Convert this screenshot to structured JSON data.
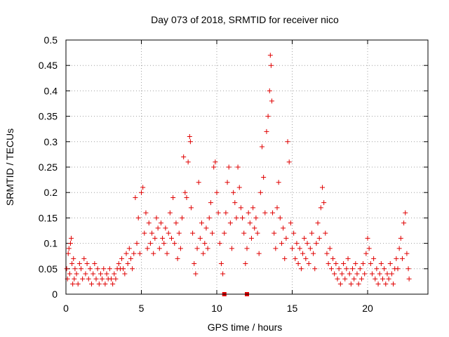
{
  "chart_data": {
    "type": "scatter",
    "title": "Day 073 of 2018, SRMTID for receiver nico",
    "xlabel": "GPS time / hours",
    "ylabel": "SRMTID / TECUs",
    "xlim": [
      0,
      24
    ],
    "ylim": [
      0,
      0.5
    ],
    "x_ticks": [
      0,
      5,
      10,
      15,
      20
    ],
    "y_ticks": [
      0,
      0.05,
      0.1,
      0.15,
      0.2,
      0.25,
      0.3,
      0.35,
      0.4,
      0.45,
      0.5
    ],
    "grid": true,
    "marker": "plus",
    "color": "#e00000",
    "series": [
      {
        "points": [
          [
            0.05,
            0.05
          ],
          [
            0.1,
            0.03
          ],
          [
            0.15,
            0.08
          ],
          [
            0.2,
            0.09
          ],
          [
            0.25,
            0.04
          ],
          [
            0.3,
            0.1
          ],
          [
            0.35,
            0.11
          ],
          [
            0.4,
            0.06
          ],
          [
            0.45,
            0.02
          ],
          [
            0.5,
            0.07
          ],
          [
            0.55,
            0.03
          ],
          [
            0.6,
            0.05
          ],
          [
            0.7,
            0.04
          ],
          [
            0.8,
            0.02
          ],
          [
            0.9,
            0.06
          ],
          [
            1.0,
            0.05
          ],
          [
            1.1,
            0.03
          ],
          [
            1.2,
            0.07
          ],
          [
            1.3,
            0.04
          ],
          [
            1.4,
            0.06
          ],
          [
            1.5,
            0.03
          ],
          [
            1.6,
            0.05
          ],
          [
            1.7,
            0.02
          ],
          [
            1.8,
            0.04
          ],
          [
            1.9,
            0.06
          ],
          [
            2.0,
            0.03
          ],
          [
            2.1,
            0.05
          ],
          [
            2.2,
            0.02
          ],
          [
            2.3,
            0.04
          ],
          [
            2.4,
            0.03
          ],
          [
            2.5,
            0.05
          ],
          [
            2.6,
            0.02
          ],
          [
            2.7,
            0.04
          ],
          [
            2.8,
            0.03
          ],
          [
            2.9,
            0.05
          ],
          [
            3.0,
            0.03
          ],
          [
            3.1,
            0.02
          ],
          [
            3.2,
            0.04
          ],
          [
            3.3,
            0.03
          ],
          [
            3.4,
            0.05
          ],
          [
            3.5,
            0.06
          ],
          [
            3.6,
            0.05
          ],
          [
            3.7,
            0.07
          ],
          [
            3.8,
            0.05
          ],
          [
            3.9,
            0.04
          ],
          [
            4.0,
            0.08
          ],
          [
            4.1,
            0.06
          ],
          [
            4.2,
            0.09
          ],
          [
            4.3,
            0.07
          ],
          [
            4.4,
            0.05
          ],
          [
            4.5,
            0.08
          ],
          [
            4.6,
            0.19
          ],
          [
            4.7,
            0.1
          ],
          [
            4.8,
            0.15
          ],
          [
            4.9,
            0.08
          ],
          [
            5.0,
            0.2
          ],
          [
            5.1,
            0.21
          ],
          [
            5.2,
            0.12
          ],
          [
            5.3,
            0.16
          ],
          [
            5.4,
            0.09
          ],
          [
            5.5,
            0.14
          ],
          [
            5.6,
            0.1
          ],
          [
            5.7,
            0.12
          ],
          [
            5.8,
            0.08
          ],
          [
            5.9,
            0.11
          ],
          [
            6.0,
            0.15
          ],
          [
            6.1,
            0.13
          ],
          [
            6.2,
            0.09
          ],
          [
            6.3,
            0.14
          ],
          [
            6.4,
            0.11
          ],
          [
            6.5,
            0.1
          ],
          [
            6.6,
            0.13
          ],
          [
            6.7,
            0.08
          ],
          [
            6.8,
            0.12
          ],
          [
            6.9,
            0.16
          ],
          [
            7.0,
            0.11
          ],
          [
            7.1,
            0.19
          ],
          [
            7.2,
            0.1
          ],
          [
            7.3,
            0.14
          ],
          [
            7.4,
            0.07
          ],
          [
            7.5,
            0.12
          ],
          [
            7.6,
            0.09
          ],
          [
            7.7,
            0.15
          ],
          [
            7.8,
            0.27
          ],
          [
            7.9,
            0.2
          ],
          [
            8.0,
            0.19
          ],
          [
            8.1,
            0.26
          ],
          [
            8.2,
            0.31
          ],
          [
            8.25,
            0.3
          ],
          [
            8.3,
            0.17
          ],
          [
            8.4,
            0.12
          ],
          [
            8.5,
            0.06
          ],
          [
            8.6,
            0.04
          ],
          [
            8.7,
            0.09
          ],
          [
            8.8,
            0.22
          ],
          [
            8.9,
            0.11
          ],
          [
            9.0,
            0.14
          ],
          [
            9.1,
            0.08
          ],
          [
            9.2,
            0.1
          ],
          [
            9.3,
            0.13
          ],
          [
            9.4,
            0.09
          ],
          [
            9.5,
            0.15
          ],
          [
            9.6,
            0.18
          ],
          [
            9.7,
            0.12
          ],
          [
            9.8,
            0.25
          ],
          [
            9.9,
            0.26
          ],
          [
            10.0,
            0.2
          ],
          [
            10.1,
            0.16
          ],
          [
            10.2,
            0.1
          ],
          [
            10.3,
            0.06
          ],
          [
            10.4,
            0.04
          ],
          [
            10.5,
            0.12
          ],
          [
            10.6,
            0.16
          ],
          [
            10.7,
            0.22
          ],
          [
            10.8,
            0.25
          ],
          [
            10.9,
            0.14
          ],
          [
            11.0,
            0.09
          ],
          [
            11.1,
            0.2
          ],
          [
            11.2,
            0.18
          ],
          [
            11.3,
            0.15
          ],
          [
            11.4,
            0.25
          ],
          [
            11.5,
            0.21
          ],
          [
            11.6,
            0.17
          ],
          [
            11.7,
            0.15
          ],
          [
            11.8,
            0.12
          ],
          [
            11.9,
            0.06
          ],
          [
            12.0,
            0.09
          ],
          [
            12.1,
            0.16
          ],
          [
            12.2,
            0.14
          ],
          [
            12.3,
            0.11
          ],
          [
            12.4,
            0.17
          ],
          [
            12.5,
            0.13
          ],
          [
            12.6,
            0.15
          ],
          [
            12.7,
            0.12
          ],
          [
            12.8,
            0.08
          ],
          [
            12.9,
            0.2
          ],
          [
            13.0,
            0.29
          ],
          [
            13.1,
            0.23
          ],
          [
            13.2,
            0.16
          ],
          [
            13.3,
            0.32
          ],
          [
            13.4,
            0.35
          ],
          [
            13.5,
            0.4
          ],
          [
            13.55,
            0.47
          ],
          [
            13.6,
            0.45
          ],
          [
            13.65,
            0.38
          ],
          [
            13.7,
            0.16
          ],
          [
            13.8,
            0.12
          ],
          [
            13.9,
            0.09
          ],
          [
            14.0,
            0.17
          ],
          [
            14.1,
            0.22
          ],
          [
            14.2,
            0.15
          ],
          [
            14.3,
            0.1
          ],
          [
            14.4,
            0.13
          ],
          [
            14.5,
            0.07
          ],
          [
            14.6,
            0.11
          ],
          [
            14.7,
            0.3
          ],
          [
            14.8,
            0.26
          ],
          [
            14.9,
            0.14
          ],
          [
            15.0,
            0.09
          ],
          [
            15.1,
            0.12
          ],
          [
            15.2,
            0.07
          ],
          [
            15.3,
            0.1
          ],
          [
            15.4,
            0.06
          ],
          [
            15.5,
            0.09
          ],
          [
            15.6,
            0.05
          ],
          [
            15.7,
            0.08
          ],
          [
            15.8,
            0.11
          ],
          [
            15.9,
            0.07
          ],
          [
            16.0,
            0.1
          ],
          [
            16.1,
            0.06
          ],
          [
            16.2,
            0.09
          ],
          [
            16.3,
            0.12
          ],
          [
            16.4,
            0.08
          ],
          [
            16.5,
            0.05
          ],
          [
            16.6,
            0.1
          ],
          [
            16.7,
            0.14
          ],
          [
            16.8,
            0.11
          ],
          [
            16.9,
            0.17
          ],
          [
            17.0,
            0.21
          ],
          [
            17.1,
            0.18
          ],
          [
            17.2,
            0.12
          ],
          [
            17.3,
            0.08
          ],
          [
            17.4,
            0.06
          ],
          [
            17.5,
            0.09
          ],
          [
            17.6,
            0.05
          ],
          [
            17.7,
            0.07
          ],
          [
            17.8,
            0.04
          ],
          [
            17.9,
            0.06
          ],
          [
            18.0,
            0.03
          ],
          [
            18.1,
            0.05
          ],
          [
            18.2,
            0.02
          ],
          [
            18.3,
            0.04
          ],
          [
            18.4,
            0.06
          ],
          [
            18.5,
            0.03
          ],
          [
            18.6,
            0.05
          ],
          [
            18.7,
            0.07
          ],
          [
            18.8,
            0.04
          ],
          [
            18.9,
            0.02
          ],
          [
            19.0,
            0.05
          ],
          [
            19.1,
            0.03
          ],
          [
            19.2,
            0.06
          ],
          [
            19.3,
            0.04
          ],
          [
            19.4,
            0.02
          ],
          [
            19.5,
            0.05
          ],
          [
            19.6,
            0.03
          ],
          [
            19.7,
            0.06
          ],
          [
            19.8,
            0.04
          ],
          [
            19.9,
            0.08
          ],
          [
            20.0,
            0.11
          ],
          [
            20.1,
            0.09
          ],
          [
            20.2,
            0.06
          ],
          [
            20.3,
            0.04
          ],
          [
            20.4,
            0.07
          ],
          [
            20.5,
            0.03
          ],
          [
            20.6,
            0.05
          ],
          [
            20.7,
            0.02
          ],
          [
            20.8,
            0.04
          ],
          [
            20.9,
            0.06
          ],
          [
            21.0,
            0.03
          ],
          [
            21.1,
            0.05
          ],
          [
            21.2,
            0.02
          ],
          [
            21.3,
            0.04
          ],
          [
            21.4,
            0.03
          ],
          [
            21.5,
            0.06
          ],
          [
            21.6,
            0.04
          ],
          [
            21.7,
            0.02
          ],
          [
            21.8,
            0.05
          ],
          [
            21.9,
            0.07
          ],
          [
            22.0,
            0.05
          ],
          [
            22.1,
            0.09
          ],
          [
            22.2,
            0.11
          ],
          [
            22.3,
            0.07
          ],
          [
            22.4,
            0.14
          ],
          [
            22.5,
            0.16
          ],
          [
            22.6,
            0.08
          ],
          [
            22.7,
            0.05
          ],
          [
            22.75,
            0.03
          ]
        ]
      },
      {
        "marker": "square",
        "points": [
          [
            10.5,
            0.0
          ],
          [
            12.0,
            0.0
          ]
        ]
      }
    ]
  }
}
